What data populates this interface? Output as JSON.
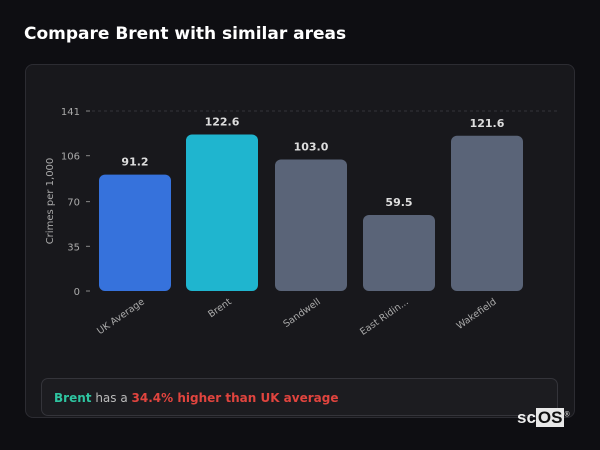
{
  "title": "Compare Brent with similar areas",
  "chart_data": {
    "type": "bar",
    "categories": [
      "UK Average",
      "Brent",
      "Sandwell",
      "East Ridin...",
      "Wakefield"
    ],
    "values": [
      91.2,
      122.6,
      103.0,
      59.5,
      121.6
    ],
    "value_labels": [
      "91.2",
      "122.6",
      "103.0",
      "59.5",
      "121.6"
    ],
    "colors": [
      "#3672dc",
      "#1fb5cf",
      "#5a6478",
      "#5a6478",
      "#5a6478"
    ],
    "ylabel": "Crimes per 1,000",
    "xlabel": "",
    "yticks": [
      0,
      35,
      70,
      106,
      141
    ],
    "ylim": [
      0,
      141
    ],
    "grid": "top dashed line only",
    "legend": "none"
  },
  "callout": {
    "subject": "Brent",
    "middle": "has a",
    "comparison": "34.4% higher than UK average"
  },
  "logo": {
    "prefix": "sc",
    "suffix": "OS",
    "mark": "®"
  }
}
